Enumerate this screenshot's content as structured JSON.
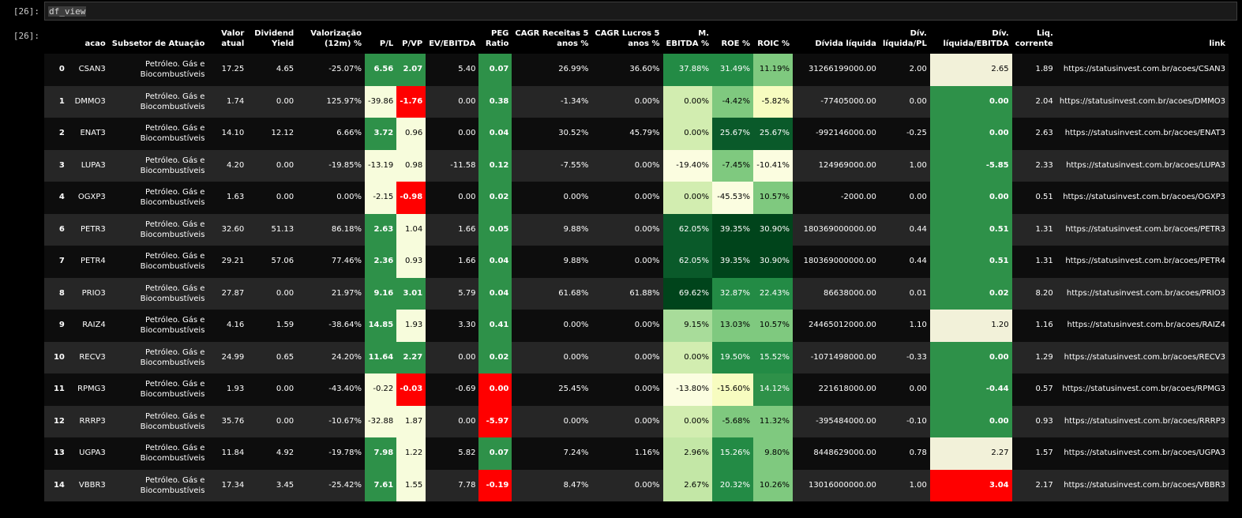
{
  "cells": {
    "input_prompt": "[26]:",
    "output_prompt": "[26]:",
    "code": "df_view"
  },
  "columns": [
    {
      "key": "idx",
      "label": ""
    },
    {
      "key": "acao",
      "label": "acao"
    },
    {
      "key": "sub",
      "label": "Subsetor de Atuação"
    },
    {
      "key": "valor",
      "label": "Valor\natual"
    },
    {
      "key": "dy",
      "label": "Dividend\nYield"
    },
    {
      "key": "val12",
      "label": "Valorização\n(12m) %"
    },
    {
      "key": "pl",
      "label": "P/L"
    },
    {
      "key": "pvp",
      "label": "P/VP"
    },
    {
      "key": "ev",
      "label": "EV/EBITDA"
    },
    {
      "key": "peg",
      "label": "PEG\nRatio"
    },
    {
      "key": "cagr_r",
      "label": "CAGR Receitas 5\nanos %"
    },
    {
      "key": "cagr_l",
      "label": "CAGR Lucros 5\nanos %"
    },
    {
      "key": "mebitda",
      "label": "M.\nEBITDA %"
    },
    {
      "key": "roe",
      "label": "ROE %"
    },
    {
      "key": "roic",
      "label": "ROIC %"
    },
    {
      "key": "div",
      "label": "Dívida líquida"
    },
    {
      "key": "divpl",
      "label": "Dív.\nlíquida/PL"
    },
    {
      "key": "divebitda",
      "label": "Dív.\nlíquida/EBITDA"
    },
    {
      "key": "liq",
      "label": "Liq.\ncorrente"
    },
    {
      "key": "link",
      "label": "link"
    }
  ],
  "colors": {
    "red": "#ff0000",
    "green_mid": "#2e9149",
    "green_dark": "#00441b",
    "green_darker": "#0a5a2a",
    "green_medium": "#238b45",
    "green_light": "#7fc97f",
    "green_pale": "#a8dc9a",
    "green_paler": "#d2edb0",
    "cream": "#f7fcdc",
    "beige": "#f2f1d9"
  },
  "rows": [
    {
      "idx": "0",
      "acao": "CSAN3",
      "sub": "Petróleo. Gás e Biocombustíveis",
      "valor": "17.25",
      "dy": "4.65",
      "val12": "-25.07%",
      "pl": "6.56",
      "pvp": "2.07",
      "ev": "5.40",
      "peg": "0.07",
      "cagr_r": "26.99%",
      "cagr_l": "36.60%",
      "mebitda": "37.88%",
      "roe": "31.49%",
      "roic": "11.19%",
      "div": "31266199000.00",
      "divpl": "2.00",
      "divebitda": "2.65",
      "liq": "1.89",
      "link": "https://statusinvest.com.br/acoes/CSAN3",
      "hl": {
        "pl": "#2e9149",
        "pvp": "#2e9149",
        "peg": "#2e9149",
        "mebitda": "#238b45",
        "roe": "#238b45",
        "roic": "#7fc97f",
        "divebitda": "#f2f1d9"
      }
    },
    {
      "idx": "1",
      "acao": "DMMO3",
      "sub": "Petróleo. Gás e Biocombustíveis",
      "valor": "1.74",
      "dy": "0.00",
      "val12": "125.97%",
      "pl": "-39.86",
      "pvp": "-1.76",
      "ev": "0.00",
      "peg": "0.38",
      "cagr_r": "-1.34%",
      "cagr_l": "0.00%",
      "mebitda": "0.00%",
      "roe": "-4.42%",
      "roic": "-5.82%",
      "div": "-77405000.00",
      "divpl": "0.00",
      "divebitda": "0.00",
      "liq": "2.04",
      "link": "https://statusinvest.com.br/acoes/DMMO3",
      "hl": {
        "pl": "#f7fcdc",
        "pvp": "#ff0000",
        "peg": "#2e9149",
        "mebitda": "#d2edb0",
        "roe": "#7fc97f",
        "roic": "#f7fcc0",
        "divebitda": "#2e9149"
      }
    },
    {
      "idx": "2",
      "acao": "ENAT3",
      "sub": "Petróleo. Gás e Biocombustíveis",
      "valor": "14.10",
      "dy": "12.12",
      "val12": "6.66%",
      "pl": "3.72",
      "pvp": "0.96",
      "ev": "0.00",
      "peg": "0.04",
      "cagr_r": "30.52%",
      "cagr_l": "45.79%",
      "mebitda": "0.00%",
      "roe": "25.67%",
      "roic": "25.67%",
      "div": "-992146000.00",
      "divpl": "-0.25",
      "divebitda": "0.00",
      "liq": "2.63",
      "link": "https://statusinvest.com.br/acoes/ENAT3",
      "hl": {
        "pl": "#2e9149",
        "pvp": "#f7fcdc",
        "peg": "#2e9149",
        "mebitda": "#d2edb0",
        "roe": "#0a5a2a",
        "roic": "#0a5a2a",
        "divebitda": "#2e9149"
      }
    },
    {
      "idx": "3",
      "acao": "LUPA3",
      "sub": "Petróleo. Gás e Biocombustíveis",
      "valor": "4.20",
      "dy": "0.00",
      "val12": "-19.85%",
      "pl": "-13.19",
      "pvp": "0.98",
      "ev": "-11.58",
      "peg": "0.12",
      "cagr_r": "-7.55%",
      "cagr_l": "0.00%",
      "mebitda": "-19.40%",
      "roe": "-7.45%",
      "roic": "-10.41%",
      "div": "124969000.00",
      "divpl": "1.00",
      "divebitda": "-5.85",
      "liq": "2.33",
      "link": "https://statusinvest.com.br/acoes/LUPA3",
      "hl": {
        "pl": "#f7fcdc",
        "pvp": "#f7fcdc",
        "peg": "#2e9149",
        "mebitda": "#fbfde0",
        "roe": "#7fc97f",
        "roic": "#fbfde0",
        "divebitda": "#2e9149"
      }
    },
    {
      "idx": "4",
      "acao": "OGXP3",
      "sub": "Petróleo. Gás e Biocombustíveis",
      "valor": "1.63",
      "dy": "0.00",
      "val12": "0.00%",
      "pl": "-2.15",
      "pvp": "-0.98",
      "ev": "0.00",
      "peg": "0.02",
      "cagr_r": "0.00%",
      "cagr_l": "0.00%",
      "mebitda": "0.00%",
      "roe": "-45.53%",
      "roic": "10.57%",
      "div": "-2000.00",
      "divpl": "0.00",
      "divebitda": "0.00",
      "liq": "0.51",
      "link": "https://statusinvest.com.br/acoes/OGXP3",
      "hl": {
        "pl": "#f7fcdc",
        "pvp": "#ff0000",
        "peg": "#2e9149",
        "mebitda": "#d2edb0",
        "roe": "#fbfde0",
        "roic": "#7fc97f",
        "divebitda": "#2e9149"
      }
    },
    {
      "idx": "6",
      "acao": "PETR3",
      "sub": "Petróleo. Gás e Biocombustíveis",
      "valor": "32.60",
      "dy": "51.13",
      "val12": "86.18%",
      "pl": "2.63",
      "pvp": "1.04",
      "ev": "1.66",
      "peg": "0.05",
      "cagr_r": "9.88%",
      "cagr_l": "0.00%",
      "mebitda": "62.05%",
      "roe": "39.35%",
      "roic": "30.90%",
      "div": "180369000000.00",
      "divpl": "0.44",
      "divebitda": "0.51",
      "liq": "1.31",
      "link": "https://statusinvest.com.br/acoes/PETR3",
      "hl": {
        "pl": "#2e9149",
        "pvp": "#f7fcdc",
        "peg": "#2e9149",
        "mebitda": "#0a5a2a",
        "roe": "#00441b",
        "roic": "#00441b",
        "divebitda": "#2e9149"
      }
    },
    {
      "idx": "7",
      "acao": "PETR4",
      "sub": "Petróleo. Gás e Biocombustíveis",
      "valor": "29.21",
      "dy": "57.06",
      "val12": "77.46%",
      "pl": "2.36",
      "pvp": "0.93",
      "ev": "1.66",
      "peg": "0.04",
      "cagr_r": "9.88%",
      "cagr_l": "0.00%",
      "mebitda": "62.05%",
      "roe": "39.35%",
      "roic": "30.90%",
      "div": "180369000000.00",
      "divpl": "0.44",
      "divebitda": "0.51",
      "liq": "1.31",
      "link": "https://statusinvest.com.br/acoes/PETR4",
      "hl": {
        "pl": "#2e9149",
        "pvp": "#f7fcdc",
        "peg": "#2e9149",
        "mebitda": "#0a5a2a",
        "roe": "#00441b",
        "roic": "#00441b",
        "divebitda": "#2e9149"
      }
    },
    {
      "idx": "8",
      "acao": "PRIO3",
      "sub": "Petróleo. Gás e Biocombustíveis",
      "valor": "27.87",
      "dy": "0.00",
      "val12": "21.97%",
      "pl": "9.16",
      "pvp": "3.01",
      "ev": "5.79",
      "peg": "0.04",
      "cagr_r": "61.68%",
      "cagr_l": "61.88%",
      "mebitda": "69.62%",
      "roe": "32.87%",
      "roic": "22.43%",
      "div": "86638000.00",
      "divpl": "0.01",
      "divebitda": "0.02",
      "liq": "8.20",
      "link": "https://statusinvest.com.br/acoes/PRIO3",
      "hl": {
        "pl": "#2e9149",
        "pvp": "#2e9149",
        "peg": "#2e9149",
        "mebitda": "#00441b",
        "roe": "#238b45",
        "roic": "#238b45",
        "divebitda": "#2e9149"
      }
    },
    {
      "idx": "9",
      "acao": "RAIZ4",
      "sub": "Petróleo. Gás e Biocombustíveis",
      "valor": "4.16",
      "dy": "1.59",
      "val12": "-38.64%",
      "pl": "14.85",
      "pvp": "1.93",
      "ev": "3.30",
      "peg": "0.41",
      "cagr_r": "0.00%",
      "cagr_l": "0.00%",
      "mebitda": "9.15%",
      "roe": "13.03%",
      "roic": "10.57%",
      "div": "24465012000.00",
      "divpl": "1.10",
      "divebitda": "1.20",
      "liq": "1.16",
      "link": "https://statusinvest.com.br/acoes/RAIZ4",
      "hl": {
        "pl": "#2e9149",
        "pvp": "#f7fcdc",
        "peg": "#2e9149",
        "mebitda": "#a8dc9a",
        "roe": "#7fc97f",
        "roic": "#7fc97f",
        "divebitda": "#f2f1d9"
      }
    },
    {
      "idx": "10",
      "acao": "RECV3",
      "sub": "Petróleo. Gás e Biocombustíveis",
      "valor": "24.99",
      "dy": "0.65",
      "val12": "24.20%",
      "pl": "11.64",
      "pvp": "2.27",
      "ev": "0.00",
      "peg": "0.02",
      "cagr_r": "0.00%",
      "cagr_l": "0.00%",
      "mebitda": "0.00%",
      "roe": "19.50%",
      "roic": "15.52%",
      "div": "-1071498000.00",
      "divpl": "-0.33",
      "divebitda": "0.00",
      "liq": "1.29",
      "link": "https://statusinvest.com.br/acoes/RECV3",
      "hl": {
        "pl": "#2e9149",
        "pvp": "#2e9149",
        "peg": "#2e9149",
        "mebitda": "#d2edb0",
        "roe": "#238b45",
        "roic": "#238b45",
        "divebitda": "#2e9149"
      }
    },
    {
      "idx": "11",
      "acao": "RPMG3",
      "sub": "Petróleo. Gás e Biocombustíveis",
      "valor": "1.93",
      "dy": "0.00",
      "val12": "-43.40%",
      "pl": "-0.22",
      "pvp": "-0.03",
      "ev": "-0.69",
      "peg": "0.00",
      "cagr_r": "25.45%",
      "cagr_l": "0.00%",
      "mebitda": "-13.80%",
      "roe": "-15.60%",
      "roic": "14.12%",
      "div": "221618000.00",
      "divpl": "0.00",
      "divebitda": "-0.44",
      "liq": "0.57",
      "link": "https://statusinvest.com.br/acoes/RPMG3",
      "hl": {
        "pl": "#f7fcdc",
        "pvp": "#ff0000",
        "peg": "#ff0000",
        "mebitda": "#fbfde0",
        "roe": "#f7fcc0",
        "roic": "#2e9149",
        "divebitda": "#2e9149"
      }
    },
    {
      "idx": "12",
      "acao": "RRRP3",
      "sub": "Petróleo. Gás e Biocombustíveis",
      "valor": "35.76",
      "dy": "0.00",
      "val12": "-10.67%",
      "pl": "-32.88",
      "pvp": "1.87",
      "ev": "0.00",
      "peg": "-5.97",
      "cagr_r": "0.00%",
      "cagr_l": "0.00%",
      "mebitda": "0.00%",
      "roe": "-5.68%",
      "roic": "11.32%",
      "div": "-395484000.00",
      "divpl": "-0.10",
      "divebitda": "0.00",
      "liq": "0.93",
      "link": "https://statusinvest.com.br/acoes/RRRP3",
      "hl": {
        "pl": "#f7fcdc",
        "pvp": "#f7fcdc",
        "peg": "#ff0000",
        "mebitda": "#d2edb0",
        "roe": "#7fc97f",
        "roic": "#7fc97f",
        "divebitda": "#2e9149"
      }
    },
    {
      "idx": "13",
      "acao": "UGPA3",
      "sub": "Petróleo. Gás e Biocombustíveis",
      "valor": "11.84",
      "dy": "4.92",
      "val12": "-19.78%",
      "pl": "7.98",
      "pvp": "1.22",
      "ev": "5.82",
      "peg": "0.07",
      "cagr_r": "7.24%",
      "cagr_l": "1.16%",
      "mebitda": "2.96%",
      "roe": "15.26%",
      "roic": "9.80%",
      "div": "8448629000.00",
      "divpl": "0.78",
      "divebitda": "2.27",
      "liq": "1.57",
      "link": "https://statusinvest.com.br/acoes/UGPA3",
      "hl": {
        "pl": "#2e9149",
        "pvp": "#f7fcdc",
        "peg": "#2e9149",
        "mebitda": "#c3e7a6",
        "roe": "#238b45",
        "roic": "#7fc97f",
        "divebitda": "#f2f1d9"
      }
    },
    {
      "idx": "14",
      "acao": "VBBR3",
      "sub": "Petróleo. Gás e Biocombustíveis",
      "valor": "17.34",
      "dy": "3.45",
      "val12": "-25.42%",
      "pl": "7.61",
      "pvp": "1.55",
      "ev": "7.78",
      "peg": "-0.19",
      "cagr_r": "8.47%",
      "cagr_l": "0.00%",
      "mebitda": "2.67%",
      "roe": "20.32%",
      "roic": "10.26%",
      "div": "13016000000.00",
      "divpl": "1.00",
      "divebitda": "3.04",
      "liq": "2.17",
      "link": "https://statusinvest.com.br/acoes/VBBR3",
      "hl": {
        "pl": "#2e9149",
        "pvp": "#f7fcdc",
        "peg": "#ff0000",
        "mebitda": "#c3e7a6",
        "roe": "#238b45",
        "roic": "#7fc97f",
        "divebitda": "#ff0000"
      }
    }
  ]
}
